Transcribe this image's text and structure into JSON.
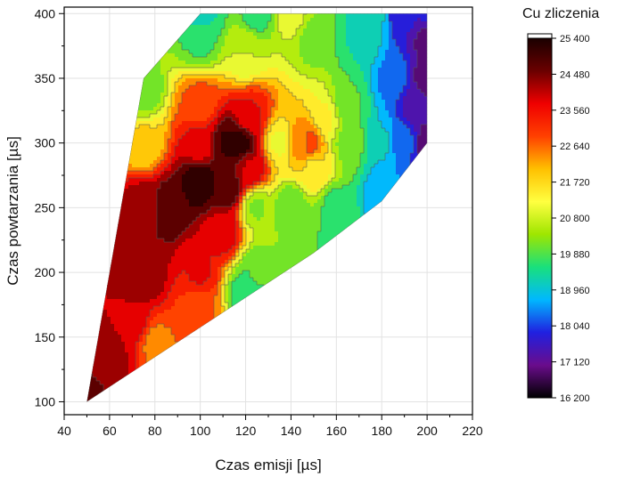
{
  "chart_data": {
    "type": "heatmap",
    "subtype": "filled-contour",
    "xlabel": "Czas emisji [µs]",
    "ylabel": "Czas powtarzania [µs]",
    "xlim": [
      40,
      220
    ],
    "ylim": [
      90,
      405
    ],
    "x_ticks": [
      40,
      60,
      80,
      100,
      120,
      140,
      160,
      180,
      200,
      220
    ],
    "y_ticks": [
      100,
      150,
      200,
      250,
      300,
      350,
      400
    ],
    "grid": true,
    "colorbar": {
      "title": "Cu zliczenia",
      "ticks": [
        "25 400",
        "24 480",
        "23 560",
        "22 640",
        "21 720",
        "20 800",
        "19 880",
        "18 960",
        "18 040",
        "17 120",
        "16 200"
      ],
      "min": 16200,
      "max": 25400,
      "colormap": [
        "#000000",
        "#6a0c8c",
        "#2020e0",
        "#00b8ff",
        "#19e07c",
        "#9ee600",
        "#ffff40",
        "#ffc000",
        "#ff4000",
        "#f00000",
        "#6a0000",
        "#1a0000"
      ]
    },
    "data_hull": [
      [
        50,
        100
      ],
      [
        75,
        350
      ],
      [
        100,
        400
      ],
      [
        200,
        400
      ],
      [
        200,
        300
      ],
      [
        180,
        255
      ],
      [
        150,
        215
      ],
      [
        50,
        100
      ]
    ],
    "z_points": [
      [
        50,
        100,
        24700
      ],
      [
        60,
        130,
        24300
      ],
      [
        70,
        160,
        24000
      ],
      [
        80,
        145,
        22500
      ],
      [
        75,
        200,
        24400
      ],
      [
        75,
        250,
        24300
      ],
      [
        75,
        300,
        21800
      ],
      [
        75,
        340,
        20000
      ],
      [
        87,
        250,
        24900
      ],
      [
        100,
        270,
        25300
      ],
      [
        100,
        300,
        23700
      ],
      [
        100,
        330,
        22800
      ],
      [
        112,
        300,
        25000
      ],
      [
        112,
        265,
        24800
      ],
      [
        118,
        300,
        25100
      ],
      [
        122,
        320,
        23600
      ],
      [
        122,
        280,
        24000
      ],
      [
        100,
        200,
        23600
      ],
      [
        100,
        170,
        22700
      ],
      [
        110,
        230,
        23800
      ],
      [
        100,
        380,
        19800
      ],
      [
        100,
        400,
        19200
      ],
      [
        125,
        400,
        19700
      ],
      [
        140,
        400,
        21000
      ],
      [
        150,
        380,
        20200
      ],
      [
        120,
        370,
        20800
      ],
      [
        125,
        250,
        20300
      ],
      [
        125,
        200,
        19900
      ],
      [
        120,
        185,
        19600
      ],
      [
        140,
        250,
        19900
      ],
      [
        140,
        210,
        20300
      ],
      [
        160,
        250,
        19700
      ],
      [
        160,
        215,
        19600
      ],
      [
        135,
        300,
        21200
      ],
      [
        145,
        300,
        22400
      ],
      [
        148,
        300,
        22800
      ],
      [
        150,
        280,
        21600
      ],
      [
        155,
        320,
        21300
      ],
      [
        165,
        300,
        20200
      ],
      [
        165,
        330,
        19900
      ],
      [
        170,
        380,
        19400
      ],
      [
        175,
        400,
        19200
      ],
      [
        180,
        300,
        19000
      ],
      [
        180,
        260,
        18600
      ],
      [
        185,
        350,
        18400
      ],
      [
        190,
        400,
        17700
      ],
      [
        190,
        300,
        18200
      ],
      [
        195,
        330,
        17300
      ],
      [
        200,
        300,
        16900
      ],
      [
        200,
        350,
        16900
      ],
      [
        200,
        380,
        17000
      ],
      [
        200,
        400,
        17600
      ]
    ]
  }
}
